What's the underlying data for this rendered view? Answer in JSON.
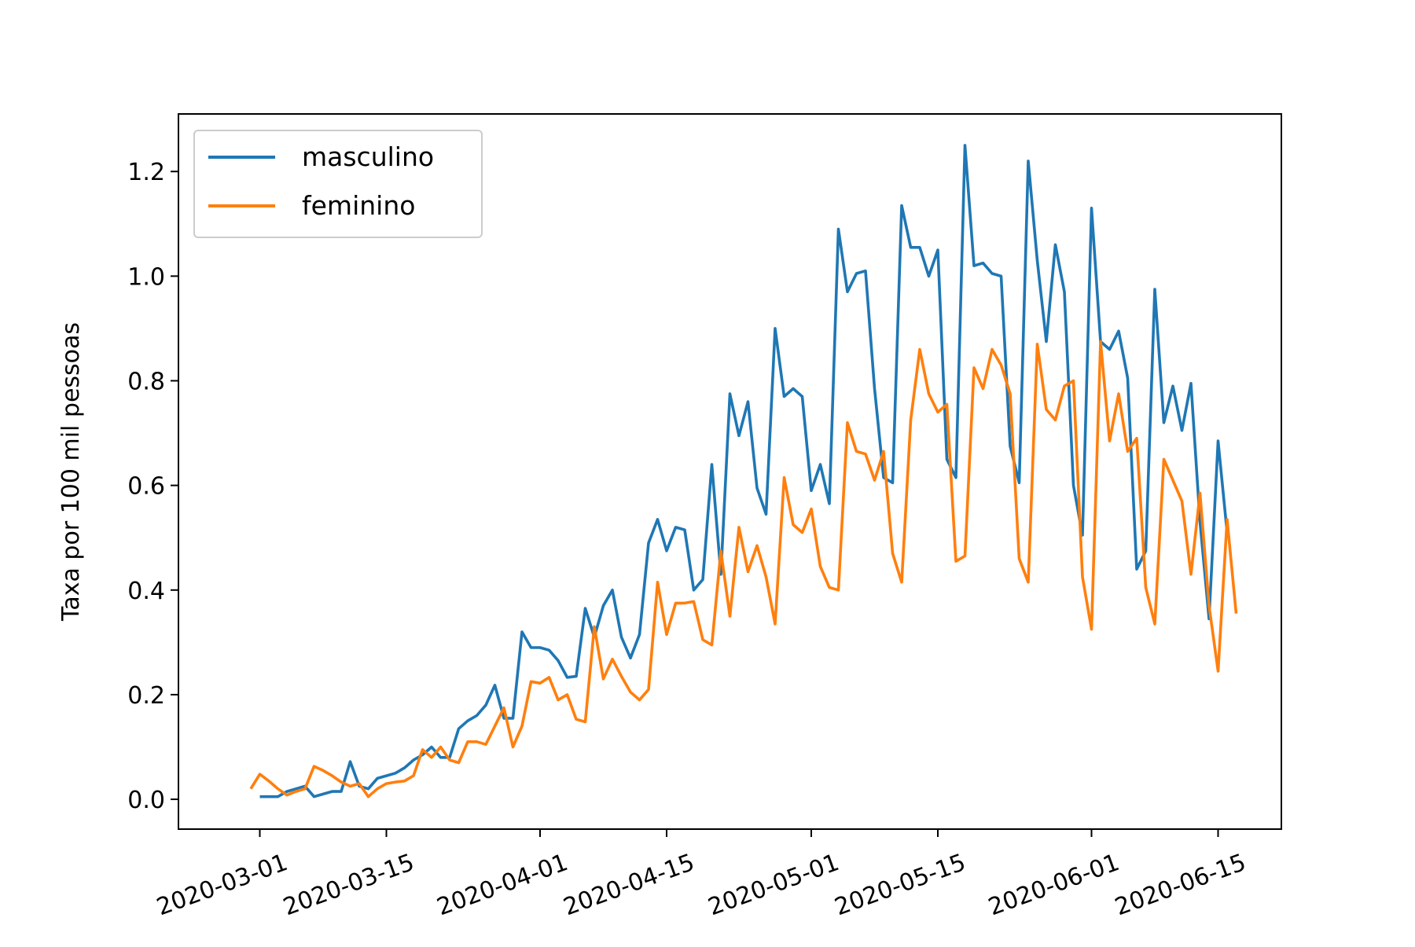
{
  "chart_data": {
    "type": "line",
    "title": "",
    "xlabel": "",
    "ylabel": "Taxa por 100 mil pessoas",
    "x_tick_labels": [
      "2020-03-01",
      "2020-03-15",
      "2020-04-01",
      "2020-04-15",
      "2020-05-01",
      "2020-05-15",
      "2020-06-01",
      "2020-06-15"
    ],
    "y_tick_labels": [
      "0.0",
      "0.2",
      "0.4",
      "0.6",
      "0.8",
      "1.0",
      "1.2"
    ],
    "x_range": [
      "2020-02-21",
      "2020-06-22"
    ],
    "y_range": [
      -0.057,
      1.31
    ],
    "grid": false,
    "legend_position": "top-left",
    "series": [
      {
        "name": "masculino",
        "color": "#1f77b4",
        "start_date": "2020-03-01",
        "values": [
          0.005,
          0.005,
          0.005,
          0.015,
          0.02,
          0.025,
          0.005,
          0.01,
          0.015,
          0.015,
          0.072,
          0.025,
          0.02,
          0.04,
          0.045,
          0.05,
          0.06,
          0.075,
          0.085,
          0.1,
          0.08,
          0.08,
          0.135,
          0.15,
          0.16,
          0.18,
          0.218,
          0.155,
          0.155,
          0.32,
          0.29,
          0.29,
          0.285,
          0.265,
          0.233,
          0.235,
          0.365,
          0.31,
          0.37,
          0.4,
          0.31,
          0.27,
          0.315,
          0.49,
          0.535,
          0.475,
          0.52,
          0.515,
          0.4,
          0.42,
          0.64,
          0.43,
          0.775,
          0.695,
          0.76,
          0.595,
          0.545,
          0.9,
          0.77,
          0.785,
          0.77,
          0.59,
          0.64,
          0.565,
          1.09,
          0.97,
          1.005,
          1.01,
          0.785,
          0.615,
          0.605,
          1.135,
          1.055,
          1.055,
          1.0,
          1.05,
          0.65,
          0.615,
          1.25,
          1.02,
          1.025,
          1.005,
          1.0,
          0.675,
          0.605,
          1.22,
          1.03,
          0.875,
          1.06,
          0.97,
          0.6,
          0.505,
          1.13,
          0.875,
          0.86,
          0.895,
          0.805,
          0.44,
          0.475,
          0.975,
          0.72,
          0.79,
          0.705,
          0.795,
          0.53,
          0.345,
          0.685,
          0.51
        ]
      },
      {
        "name": "feminino",
        "color": "#ff7f0e",
        "start_date": "2020-02-29",
        "values": [
          0.02,
          0.048,
          0.035,
          0.02,
          0.008,
          0.015,
          0.02,
          0.063,
          0.055,
          0.045,
          0.033,
          0.025,
          0.03,
          0.005,
          0.02,
          0.03,
          0.033,
          0.035,
          0.045,
          0.095,
          0.08,
          0.1,
          0.075,
          0.07,
          0.11,
          0.11,
          0.105,
          0.14,
          0.175,
          0.1,
          0.14,
          0.225,
          0.222,
          0.233,
          0.19,
          0.2,
          0.153,
          0.148,
          0.33,
          0.23,
          0.268,
          0.235,
          0.205,
          0.19,
          0.21,
          0.415,
          0.315,
          0.375,
          0.375,
          0.378,
          0.305,
          0.295,
          0.475,
          0.35,
          0.52,
          0.435,
          0.485,
          0.425,
          0.335,
          0.615,
          0.525,
          0.51,
          0.555,
          0.445,
          0.405,
          0.4,
          0.72,
          0.665,
          0.66,
          0.61,
          0.665,
          0.47,
          0.415,
          0.725,
          0.86,
          0.775,
          0.74,
          0.755,
          0.455,
          0.465,
          0.825,
          0.785,
          0.86,
          0.83,
          0.775,
          0.46,
          0.415,
          0.87,
          0.745,
          0.725,
          0.79,
          0.8,
          0.425,
          0.325,
          0.875,
          0.685,
          0.775,
          0.665,
          0.69,
          0.405,
          0.335,
          0.65,
          0.61,
          0.57,
          0.43,
          0.585,
          0.37,
          0.245,
          0.535,
          0.355
        ]
      }
    ]
  }
}
